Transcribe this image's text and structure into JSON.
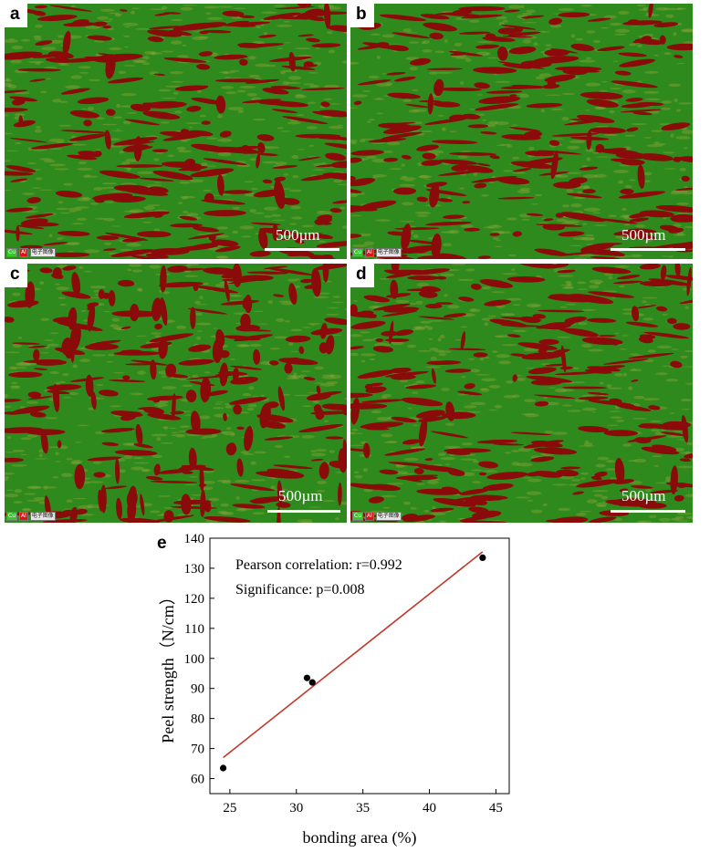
{
  "panels": [
    {
      "id": "a",
      "label": "a",
      "scale_bar": "500µm",
      "legend": [
        "Cu",
        "Al",
        "电子图像"
      ]
    },
    {
      "id": "b",
      "label": "b",
      "scale_bar": "500µm",
      "legend": [
        "Cu",
        "Al",
        "电子图像"
      ]
    },
    {
      "id": "c",
      "label": "c",
      "scale_bar": "500µm",
      "legend": [
        "Cu",
        "Al",
        "电子图像"
      ]
    },
    {
      "id": "d",
      "label": "d",
      "scale_bar": "500µm",
      "legend": [
        "Cu",
        "Al",
        "电子图像"
      ]
    }
  ],
  "colors": {
    "green_phase": "#2e8a1c",
    "red_phase": "#8b0a0a",
    "fit_line": "#c0392b",
    "points": "#000000"
  },
  "chart_data": {
    "panel_label": "e",
    "type": "scatter",
    "xlabel": "bonding area (%)",
    "ylabel": "Peel strength（N/cm）",
    "xlim": [
      23.5,
      46
    ],
    "ylim": [
      55,
      140
    ],
    "xticks": [
      25,
      30,
      35,
      40,
      45
    ],
    "yticks": [
      60,
      70,
      80,
      90,
      100,
      110,
      120,
      130,
      140
    ],
    "annotations": [
      "Pearson correlation: r=0.992",
      "Significance: p=0.008"
    ],
    "points": [
      {
        "x": 24.5,
        "y": 63.5
      },
      {
        "x": 30.8,
        "y": 93.5
      },
      {
        "x": 31.2,
        "y": 92.0
      },
      {
        "x": 44.0,
        "y": 133.5
      }
    ],
    "fit_line": {
      "x": [
        24.5,
        44.0
      ],
      "y": [
        67.0,
        135.5
      ]
    },
    "grid": false
  }
}
